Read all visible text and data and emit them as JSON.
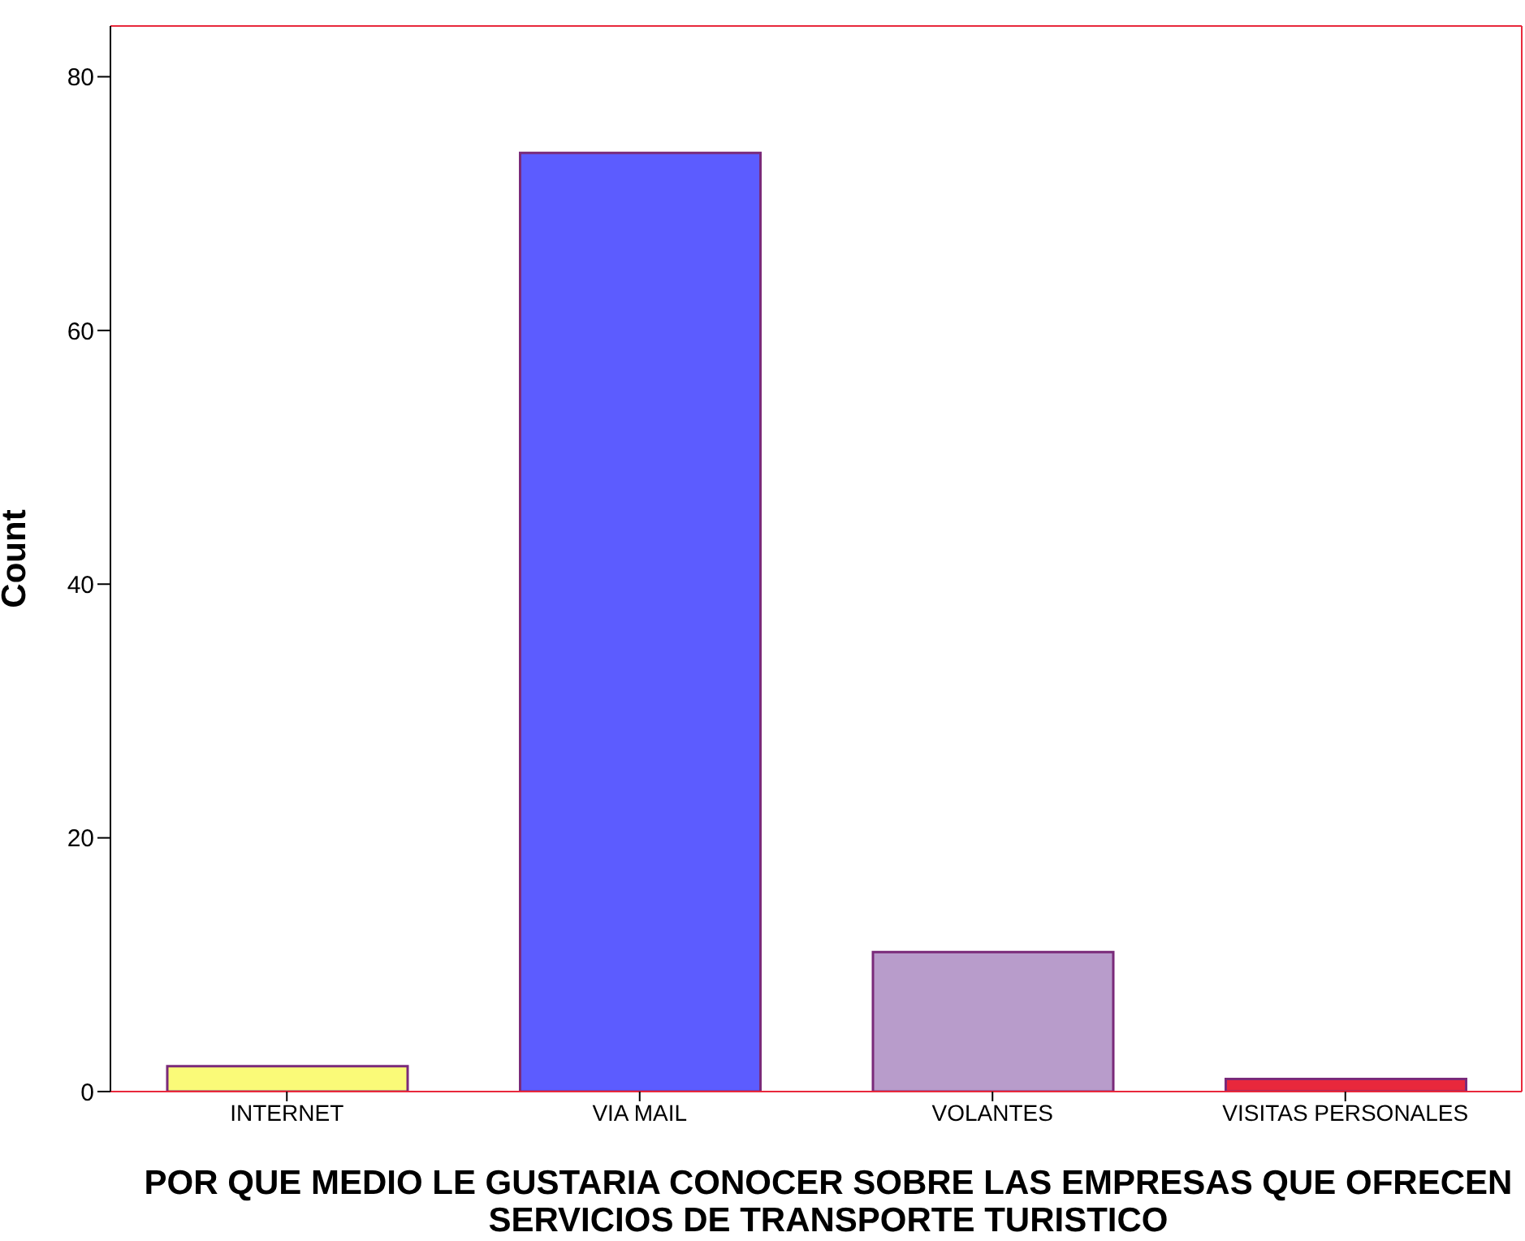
{
  "chart_data": {
    "type": "bar",
    "xlabel": "POR QUE MEDIO LE GUSTARIA CONOCER SOBRE LAS EMPRESAS QUE OFRECEN SERVICIOS DE TRANSPORTE TURISTICO",
    "ylabel": "Count",
    "categories": [
      "INTERNET",
      "VIA MAIL",
      "VOLANTES",
      "VISITAS PERSONALES"
    ],
    "values": [
      2,
      74,
      11,
      1
    ],
    "colors": [
      "#fafa78",
      "#5c5cff",
      "#b89ccb",
      "#e8283c"
    ],
    "ylim": [
      0,
      84
    ],
    "yticks": [
      0,
      20,
      40,
      60,
      80
    ],
    "grid": false
  }
}
